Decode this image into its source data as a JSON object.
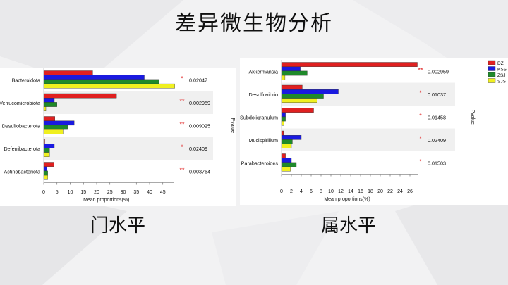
{
  "slide": {
    "title": "差异微生物分析",
    "caption_left": "门水平",
    "caption_right": "属水平"
  },
  "legend": [
    {
      "name": "DZ",
      "color": "#e02020"
    },
    {
      "name": "KSS",
      "color": "#1a1ae0"
    },
    {
      "name": "ZSJ",
      "color": "#1f8a2a"
    },
    {
      "name": "SJS",
      "color": "#f0f020"
    }
  ],
  "chart_data": [
    {
      "type": "bar",
      "orientation": "horizontal",
      "panel": "phylum",
      "categories": [
        "Bacteroidota",
        "Verrucomicrobiota",
        "Desulfobacterota",
        "Deferribacterota",
        "Actinobacteriota"
      ],
      "series": [
        {
          "name": "DZ",
          "values": [
            18.5,
            27.5,
            4.2,
            0.4,
            3.8
          ]
        },
        {
          "name": "KSS",
          "values": [
            38,
            4,
            11.5,
            4,
            1.2
          ]
        },
        {
          "name": "ZSJ",
          "values": [
            43.5,
            5,
            9,
            2.2,
            1.5
          ]
        },
        {
          "name": "SJS",
          "values": [
            49.5,
            0.8,
            7.3,
            2.2,
            1.5
          ]
        }
      ],
      "significance": [
        "*",
        "**",
        "**",
        "*",
        "**"
      ],
      "pvalues": [
        "0.02047",
        "0.002959",
        "0.009025",
        "0.02409",
        "0.003764"
      ],
      "xlabel": "Mean proportions(%)",
      "ylabel_right": "Pvalue",
      "xlim": [
        0,
        50
      ],
      "xticks": [
        0,
        5,
        10,
        15,
        20,
        25,
        30,
        35,
        40,
        45
      ]
    },
    {
      "type": "bar",
      "orientation": "horizontal",
      "panel": "genus",
      "categories": [
        "Akkermansia",
        "Desulfovibrio",
        "Subdoligranulum",
        "Mucispirillum",
        "Parabacteroides"
      ],
      "series": [
        {
          "name": "DZ",
          "values": [
            27.5,
            4.2,
            6.5,
            0.4,
            0.8
          ]
        },
        {
          "name": "KSS",
          "values": [
            3.8,
            11.5,
            0.8,
            4,
            2
          ]
        },
        {
          "name": "ZSJ",
          "values": [
            5.2,
            8.5,
            0.8,
            2.2,
            3
          ]
        },
        {
          "name": "SJS",
          "values": [
            0.7,
            7.2,
            0.5,
            2,
            1.8
          ]
        }
      ],
      "significance": [
        "**",
        "*",
        "*",
        "*",
        "*"
      ],
      "pvalues": [
        "0.002959",
        "0.01037",
        "0.01458",
        "0.02409",
        "0.01503"
      ],
      "xlabel": "Mean proportions(%)",
      "ylabel_right": "Pvalue",
      "xlim": [
        0,
        28
      ],
      "xticks": [
        0,
        2,
        4,
        6,
        8,
        10,
        12,
        14,
        16,
        18,
        20,
        22,
        24,
        26
      ]
    }
  ]
}
